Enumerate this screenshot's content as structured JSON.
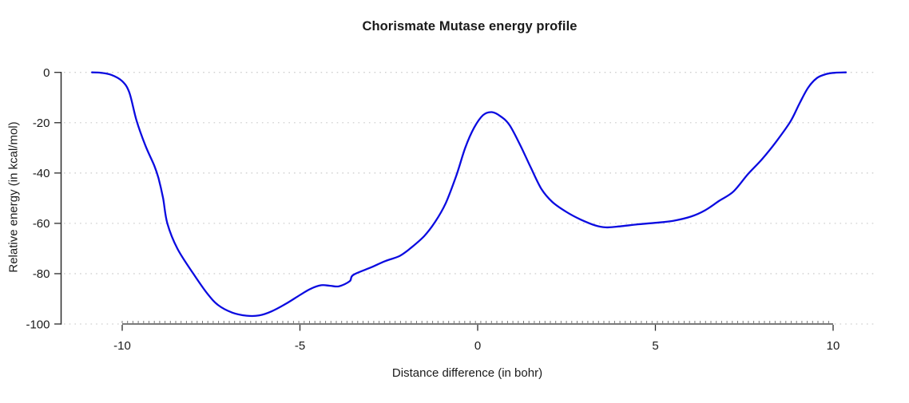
{
  "title": "Chorismate Mutase energy profile",
  "chart_data": {
    "type": "line",
    "title": "Chorismate Mutase energy profile",
    "xlabel": "Distance difference (in bohr)",
    "ylabel": "Relative energy (in kcal/mol)",
    "xlim": [
      -10,
      10
    ],
    "ylim": [
      -100,
      0
    ],
    "xticks": [
      -10,
      -5,
      0,
      5,
      10
    ],
    "yticks": [
      0,
      -20,
      -40,
      -60,
      -80,
      -100
    ],
    "grid": "horizontal-dotted",
    "legend": "none",
    "colors": {
      "line": "#0b0be0",
      "gridline": "#cfcfcf",
      "x_axis": "#7a7a7a",
      "y_axis": "#2b2b2b",
      "tick": "#2b2b2b",
      "text": "#1a1a1a"
    },
    "series": [
      {
        "name": "Relative energy",
        "x": [
          -10.85,
          -10.6,
          -10.3,
          -10.0,
          -9.8,
          -9.6,
          -9.35,
          -9.1,
          -8.98,
          -8.85,
          -8.73,
          -8.45,
          -8.0,
          -7.6,
          -7.3,
          -6.9,
          -6.5,
          -6.15,
          -5.8,
          -5.4,
          -5.0,
          -4.7,
          -4.4,
          -4.15,
          -3.9,
          -3.6,
          -3.5,
          -3.0,
          -2.6,
          -2.2,
          -1.9,
          -1.5,
          -1.2,
          -0.9,
          -0.6,
          -0.35,
          -0.1,
          0.15,
          0.4,
          0.65,
          0.9,
          1.2,
          1.5,
          1.8,
          2.1,
          2.5,
          2.9,
          3.3,
          3.6,
          4.0,
          4.5,
          5.0,
          5.5,
          6.0,
          6.4,
          6.8,
          7.2,
          7.6,
          8.0,
          8.4,
          8.8,
          9.05,
          9.3,
          9.55,
          9.8,
          10.05,
          10.36
        ],
        "y": [
          0,
          -0.15,
          -1,
          -3.5,
          -8,
          -19,
          -29,
          -37,
          -42,
          -50,
          -60,
          -70,
          -80,
          -88,
          -92.5,
          -95.5,
          -96.7,
          -96.6,
          -95,
          -92,
          -88.5,
          -86,
          -84.6,
          -84.8,
          -85.0,
          -83,
          -80.5,
          -77.5,
          -75,
          -73,
          -70,
          -65,
          -59.5,
          -52,
          -41,
          -30,
          -22,
          -17,
          -15.8,
          -17.5,
          -21,
          -29,
          -38,
          -46.5,
          -51.5,
          -55.5,
          -58.5,
          -60.8,
          -61.6,
          -61.2,
          -60.4,
          -59.8,
          -59.0,
          -57.3,
          -54.8,
          -51,
          -47.3,
          -40.5,
          -34.5,
          -27.5,
          -19.5,
          -12.5,
          -6,
          -2.2,
          -0.7,
          -0.15,
          0
        ]
      }
    ]
  }
}
